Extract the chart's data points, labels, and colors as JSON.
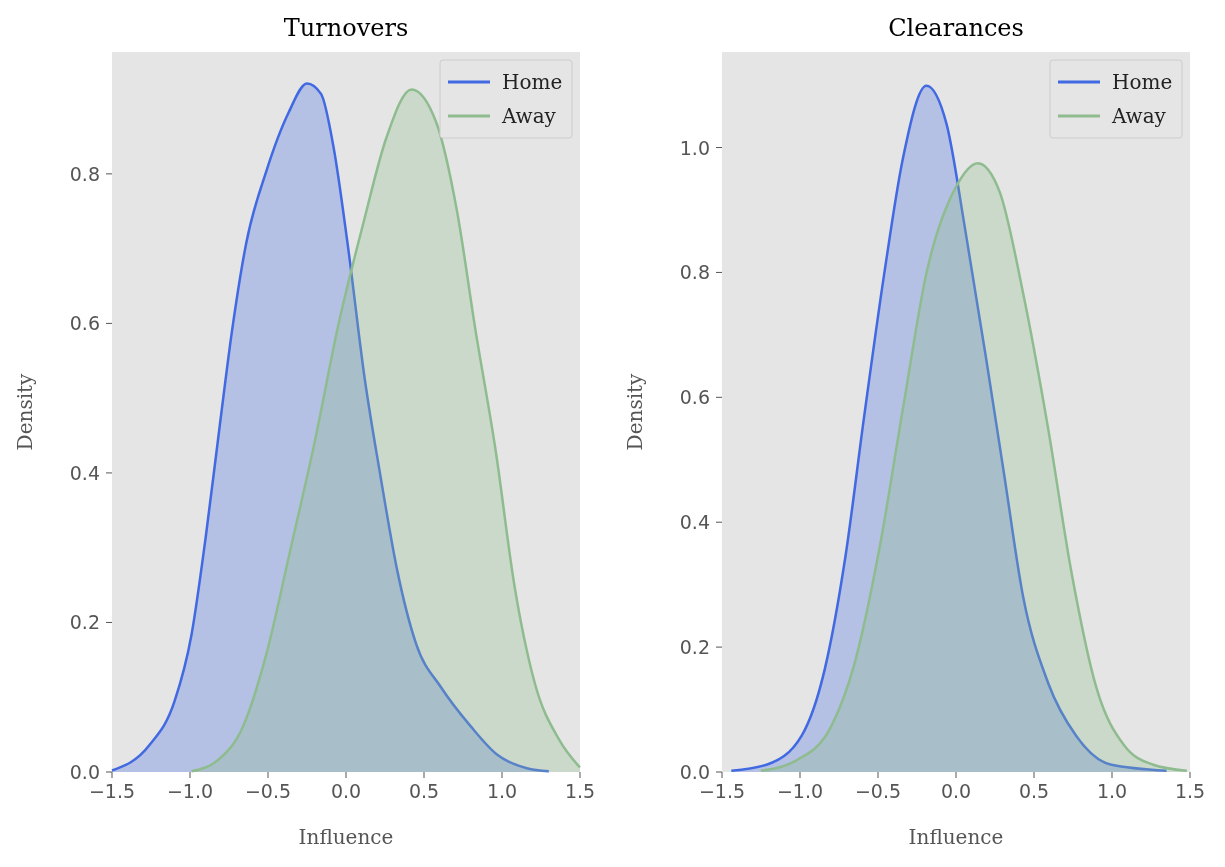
{
  "chart_data": [
    {
      "type": "area",
      "title": "Turnovers",
      "xlabel": "Influence",
      "ylabel": "Density",
      "xlim": [
        -1.5,
        1.5
      ],
      "ylim": [
        0,
        0.963
      ],
      "xticks": [
        {
          "value": -1.5,
          "label": "−1.5"
        },
        {
          "value": -1.0,
          "label": "−1.0"
        },
        {
          "value": -0.5,
          "label": "−0.5"
        },
        {
          "value": 0,
          "label": "0.0"
        },
        {
          "value": 0.5,
          "label": "0.5"
        },
        {
          "value": 1.0,
          "label": "1.0"
        },
        {
          "value": 1.5,
          "label": "1.5"
        }
      ],
      "yticks": [
        {
          "value": 0,
          "label": "0.0"
        },
        {
          "value": 0.2,
          "label": "0.2"
        },
        {
          "value": 0.4,
          "label": "0.4"
        },
        {
          "value": 0.6,
          "label": "0.6"
        },
        {
          "value": 0.8,
          "label": "0.8"
        }
      ],
      "grid": false,
      "legend": "top right",
      "series": [
        {
          "name": "Home",
          "color": "#4169e1",
          "x": [
            -1.5,
            -1.26,
            -1.1,
            -0.99,
            -0.9,
            -0.81,
            -0.73,
            -0.64,
            -0.51,
            -0.37,
            -0.25,
            -0.16,
            -0.08,
            0.01,
            0.12,
            0.22,
            0.33,
            0.45,
            0.61,
            0.8,
            0.97,
            1.16,
            1.3
          ],
          "values": [
            0.002,
            0.036,
            0.094,
            0.184,
            0.313,
            0.462,
            0.591,
            0.707,
            0.804,
            0.881,
            0.921,
            0.907,
            0.836,
            0.707,
            0.526,
            0.397,
            0.268,
            0.171,
            0.113,
            0.061,
            0.023,
            0.005,
            0.001
          ]
        },
        {
          "name": "Away",
          "color": "#8fbc8f",
          "x": [
            -0.99,
            -0.82,
            -0.66,
            -0.51,
            -0.36,
            -0.2,
            -0.05,
            0.11,
            0.26,
            0.42,
            0.58,
            0.71,
            0.83,
            0.96,
            1.08,
            1.21,
            1.37,
            1.5
          ],
          "values": [
            0.001,
            0.016,
            0.061,
            0.158,
            0.294,
            0.442,
            0.597,
            0.733,
            0.849,
            0.913,
            0.868,
            0.752,
            0.591,
            0.429,
            0.249,
            0.119,
            0.042,
            0.006
          ]
        }
      ]
    },
    {
      "type": "area",
      "title": "Clearances",
      "xlabel": "Influence",
      "ylabel": "Density",
      "xlim": [
        -1.5,
        1.5
      ],
      "ylim": [
        0,
        1.153
      ],
      "xticks": [
        {
          "value": -1.5,
          "label": "−1.5"
        },
        {
          "value": -1.0,
          "label": "−1.0"
        },
        {
          "value": -0.5,
          "label": "−0.5"
        },
        {
          "value": 0,
          "label": "0.0"
        },
        {
          "value": 0.5,
          "label": "0.5"
        },
        {
          "value": 1.0,
          "label": "1.0"
        },
        {
          "value": 1.5,
          "label": "1.5"
        }
      ],
      "yticks": [
        {
          "value": 0,
          "label": "0.0"
        },
        {
          "value": 0.2,
          "label": "0.2"
        },
        {
          "value": 0.4,
          "label": "0.4"
        },
        {
          "value": 0.6,
          "label": "0.6"
        },
        {
          "value": 0.8,
          "label": "0.8"
        },
        {
          "value": 1.0,
          "label": "1.0"
        }
      ],
      "grid": false,
      "legend": "top right",
      "series": [
        {
          "name": "Home",
          "color": "#4169e1",
          "x": [
            -1.44,
            -1.21,
            -0.99,
            -0.84,
            -0.71,
            -0.59,
            -0.46,
            -0.34,
            -0.19,
            -0.06,
            0.06,
            0.19,
            0.31,
            0.43,
            0.59,
            0.77,
            0.99,
            1.35
          ],
          "values": [
            0.002,
            0.012,
            0.058,
            0.166,
            0.343,
            0.567,
            0.798,
            0.983,
            1.099,
            1.037,
            0.867,
            0.667,
            0.474,
            0.281,
            0.143,
            0.058,
            0.012,
            0.002
          ]
        },
        {
          "name": "Away",
          "color": "#8fbc8f",
          "x": [
            -1.25,
            -1.02,
            -0.8,
            -0.65,
            -0.49,
            -0.34,
            -0.19,
            0.0,
            0.14,
            0.28,
            0.43,
            0.59,
            0.74,
            0.9,
            1.08,
            1.26,
            1.48
          ],
          "values": [
            0.002,
            0.019,
            0.073,
            0.174,
            0.359,
            0.582,
            0.798,
            0.937,
            0.975,
            0.929,
            0.767,
            0.551,
            0.32,
            0.135,
            0.042,
            0.012,
            0.002
          ]
        }
      ]
    }
  ]
}
